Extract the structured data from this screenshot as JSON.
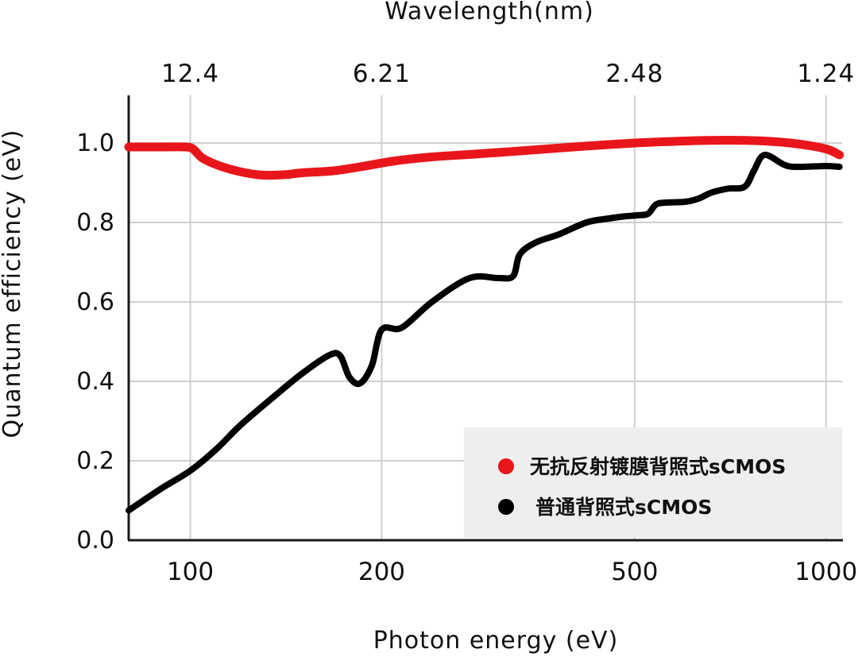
{
  "chart_data": {
    "type": "line",
    "title": "",
    "xlabel": "Photon energy (eV)",
    "ylabel": "Quantum efficiency (eV)",
    "top_xlabel": "Wavelength(nm)",
    "x_scale": "log",
    "xlim": [
      80,
      1060
    ],
    "ylim": [
      0,
      1.12
    ],
    "x_ticks": [
      100,
      200,
      500,
      1000
    ],
    "x_tick_labels": [
      "100",
      "200",
      "500",
      "1000"
    ],
    "top_ticks": [
      100,
      200,
      500,
      1000
    ],
    "top_tick_labels": [
      "12.4",
      "6.21",
      "2.48",
      "1.24"
    ],
    "y_ticks": [
      0.0,
      0.2,
      0.4,
      0.6,
      0.8,
      1.0
    ],
    "y_tick_labels": [
      "0.0",
      "0.2",
      "0.4",
      "0.6",
      "0.8",
      "1.0"
    ],
    "grid": true,
    "legend_position": "bottom-right",
    "series": [
      {
        "name": "无抗反射镀膜背照式sCMOS",
        "color": "#e8161b",
        "x": [
          80,
          90,
          98,
          101,
          105,
          115,
          128,
          140,
          150,
          168,
          185,
          210,
          240,
          280,
          330,
          400,
          500,
          600,
          700,
          800,
          900,
          1000,
          1050
        ],
        "y": [
          0.99,
          0.99,
          0.99,
          0.985,
          0.96,
          0.935,
          0.92,
          0.92,
          0.925,
          0.93,
          0.94,
          0.955,
          0.965,
          0.972,
          0.98,
          0.99,
          1.0,
          1.005,
          1.007,
          1.005,
          0.998,
          0.985,
          0.97
        ]
      },
      {
        "name": "普通背照式sCMOS",
        "color": "#000000",
        "x": [
          80,
          90,
          100,
          110,
          120,
          135,
          150,
          165,
          172,
          178,
          185,
          193,
          200,
          215,
          240,
          275,
          305,
          322,
          330,
          350,
          380,
          420,
          455,
          480,
          505,
          525,
          540,
          560,
          600,
          630,
          660,
          700,
          745,
          770,
          800,
          860,
          900,
          1000,
          1050
        ],
        "y": [
          0.075,
          0.13,
          0.175,
          0.23,
          0.29,
          0.36,
          0.42,
          0.465,
          0.465,
          0.41,
          0.395,
          0.44,
          0.53,
          0.535,
          0.6,
          0.66,
          0.66,
          0.665,
          0.72,
          0.75,
          0.77,
          0.8,
          0.81,
          0.815,
          0.818,
          0.822,
          0.845,
          0.85,
          0.852,
          0.86,
          0.875,
          0.885,
          0.89,
          0.93,
          0.97,
          0.945,
          0.94,
          0.942,
          0.94
        ]
      }
    ]
  }
}
